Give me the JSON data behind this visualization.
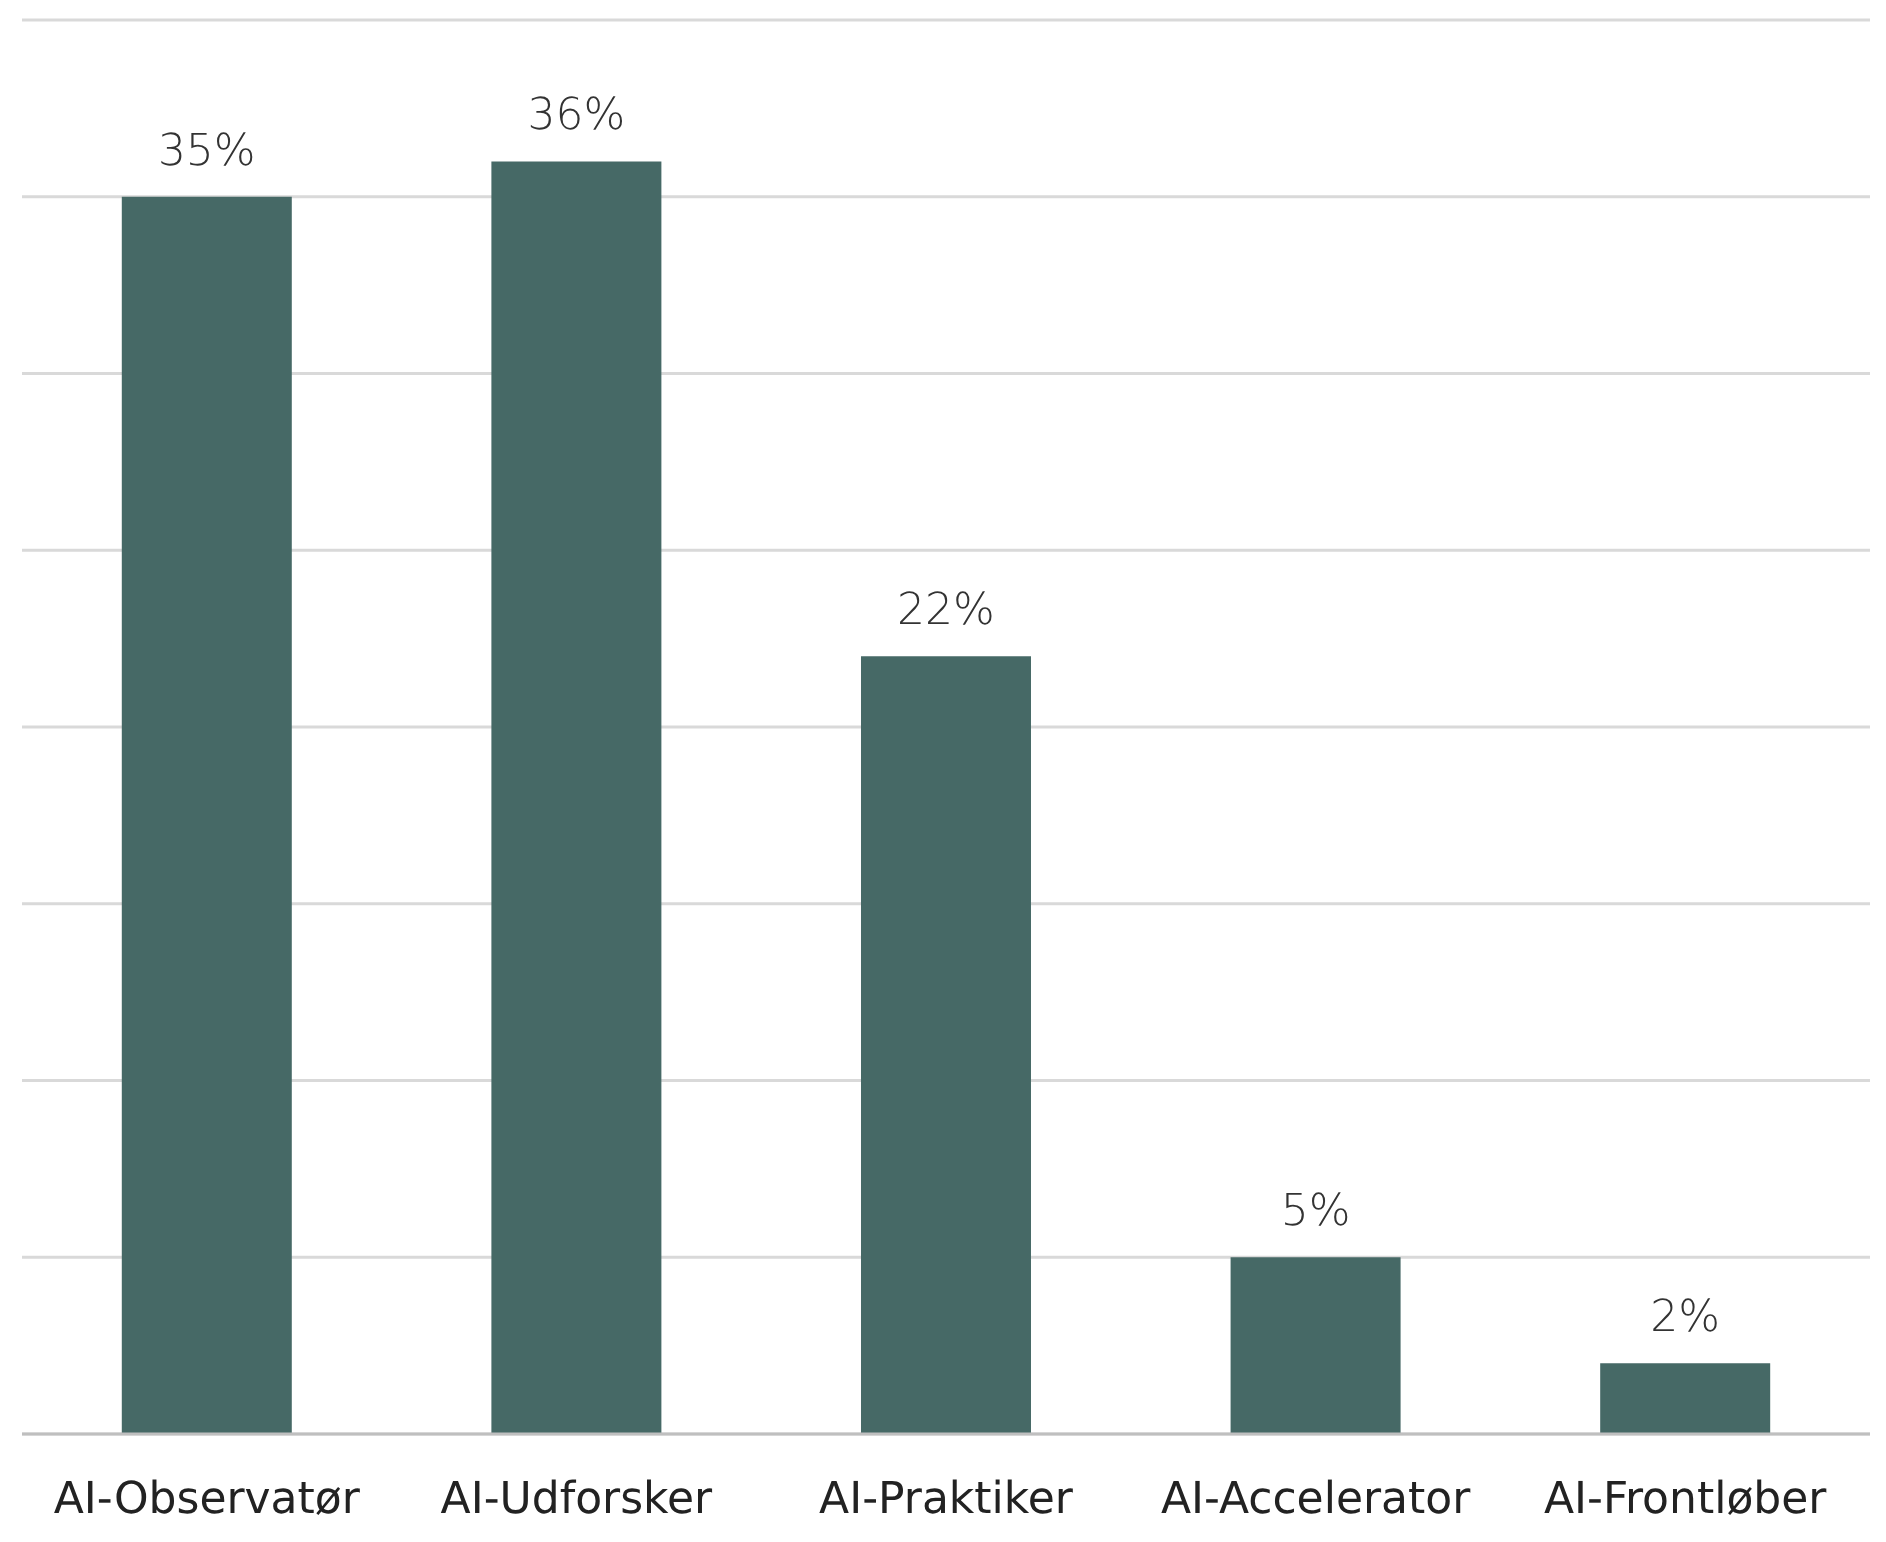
{
  "chart_data": {
    "type": "bar",
    "categories": [
      "AI-Observatør",
      "AI-Udforsker",
      "AI-Praktiker",
      "AI-Accelerator",
      "AI-Frontløber"
    ],
    "values": [
      35,
      36,
      22,
      5,
      2
    ],
    "value_labels": [
      "35%",
      "36%",
      "22%",
      "5%",
      "2%"
    ],
    "color": "#466966",
    "grid": "y",
    "tick_labels": "x"
  }
}
